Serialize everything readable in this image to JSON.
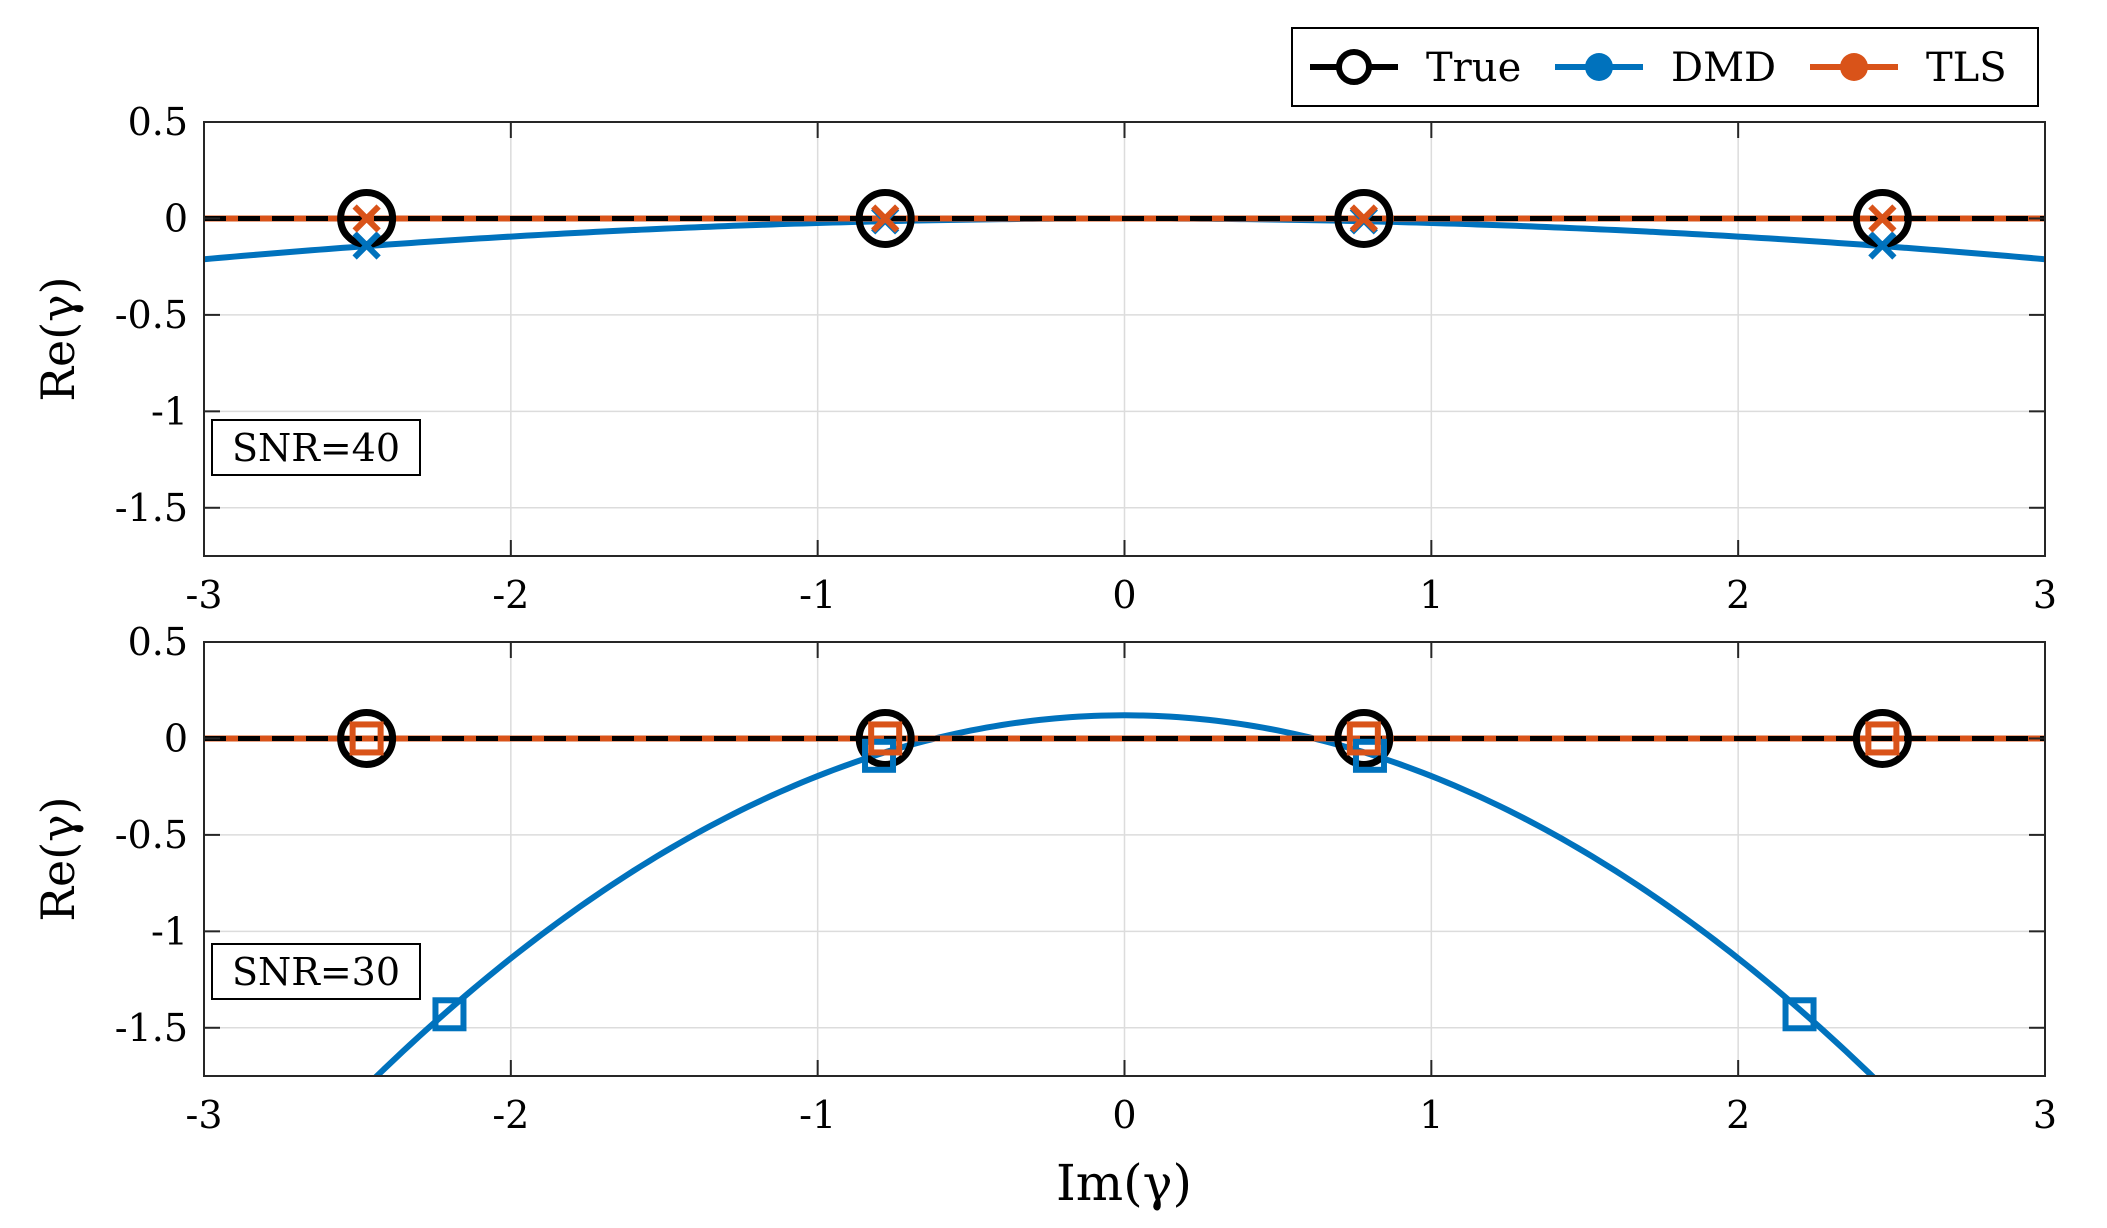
{
  "legend": {
    "placement": "top-right",
    "entries": [
      {
        "label": "True",
        "color": "#000000",
        "marker": "circle-open"
      },
      {
        "label": "DMD",
        "color": "#0072BD",
        "marker": "circle-filled"
      },
      {
        "label": "TLS",
        "color": "#D95319",
        "marker": "circle-filled"
      }
    ]
  },
  "chart_data": [
    {
      "type": "line",
      "annotation": "SNR=40",
      "xlabel": "",
      "ylabel": "Re(γ)",
      "xlim": [
        -3,
        3
      ],
      "ylim": [
        -1.75,
        0.5
      ],
      "xticks": [
        -3,
        -2,
        -1,
        0,
        1,
        2,
        3
      ],
      "yticks": [
        0.5,
        0,
        -0.5,
        -1,
        -1.5
      ],
      "grid": true,
      "marker_style": "x",
      "series": [
        {
          "name": "True",
          "color": "#000000",
          "curve": {
            "a": 0,
            "c": 0
          },
          "dashed": true,
          "markers": {
            "x": [
              -2.47,
              -0.78,
              0.78,
              2.47
            ],
            "y": [
              0,
              0,
              0,
              0
            ]
          }
        },
        {
          "name": "DMD",
          "color": "#0072BD",
          "curve": {
            "a": -0.0235,
            "c": 0
          },
          "markers": {
            "x": [
              -2.47,
              -0.78,
              0.78,
              2.47
            ],
            "y": [
              -0.14,
              -0.01,
              -0.01,
              -0.14
            ]
          }
        },
        {
          "name": "TLS",
          "color": "#D95319",
          "curve": {
            "a": 0,
            "c": 0
          },
          "markers": {
            "x": [
              -2.47,
              -0.78,
              0.78,
              2.47
            ],
            "y": [
              0,
              0,
              0,
              0
            ]
          }
        }
      ]
    },
    {
      "type": "line",
      "annotation": "SNR=30",
      "xlabel": "Im(γ)",
      "ylabel": "Re(γ)",
      "xlim": [
        -3,
        3
      ],
      "ylim": [
        -1.75,
        0.5
      ],
      "xticks": [
        -3,
        -2,
        -1,
        0,
        1,
        2,
        3
      ],
      "yticks": [
        0.5,
        0,
        -0.5,
        -1,
        -1.5
      ],
      "grid": true,
      "marker_style": "square",
      "series": [
        {
          "name": "True",
          "color": "#000000",
          "curve": {
            "a": 0,
            "c": 0
          },
          "dashed": true,
          "markers": {
            "x": [
              -2.47,
              -0.78,
              0.78,
              2.47
            ],
            "y": [
              0,
              0,
              0,
              0
            ]
          }
        },
        {
          "name": "DMD",
          "color": "#0072BD",
          "curve": {
            "a": -0.315,
            "c": 0.12
          },
          "markers": {
            "x": [
              -2.2,
              -0.8,
              0.8,
              2.2
            ],
            "y": [
              -1.43,
              -0.09,
              -0.09,
              -1.43
            ]
          }
        },
        {
          "name": "TLS",
          "color": "#D95319",
          "curve": {
            "a": 0,
            "c": 0
          },
          "markers": {
            "x": [
              -2.47,
              -0.78,
              0.78,
              2.47
            ],
            "y": [
              0,
              0,
              0,
              0
            ]
          }
        }
      ]
    }
  ]
}
